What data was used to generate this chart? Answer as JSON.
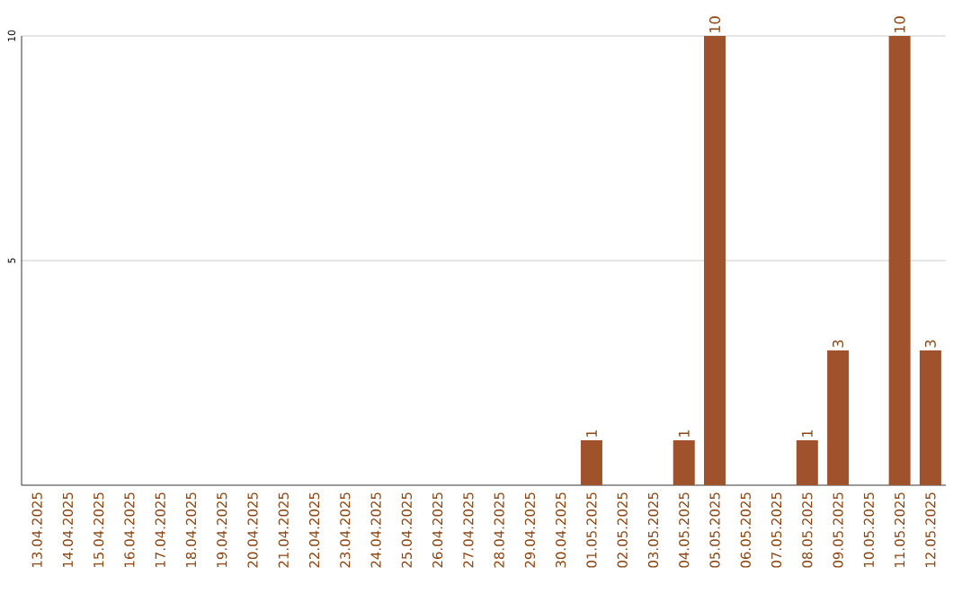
{
  "chart_data": {
    "type": "bar",
    "categories": [
      "13.04.2025",
      "14.04.2025",
      "15.04.2025",
      "16.04.2025",
      "17.04.2025",
      "18.04.2025",
      "19.04.2025",
      "20.04.2025",
      "21.04.2025",
      "22.04.2025",
      "23.04.2025",
      "24.04.2025",
      "25.04.2025",
      "26.04.2025",
      "27.04.2025",
      "28.04.2025",
      "29.04.2025",
      "30.04.2025",
      "01.05.2025",
      "02.05.2025",
      "03.05.2025",
      "04.05.2025",
      "05.05.2025",
      "06.05.2025",
      "07.05.2025",
      "08.05.2025",
      "09.05.2025",
      "10.05.2025",
      "11.05.2025",
      "12.05.2025"
    ],
    "values": [
      0,
      0,
      0,
      0,
      0,
      0,
      0,
      0,
      0,
      0,
      0,
      0,
      0,
      0,
      0,
      0,
      0,
      0,
      1,
      0,
      0,
      1,
      10,
      0,
      0,
      1,
      3,
      0,
      10,
      3
    ],
    "value_labels": [
      null,
      null,
      null,
      null,
      null,
      null,
      null,
      null,
      null,
      null,
      null,
      null,
      null,
      null,
      null,
      null,
      null,
      null,
      "1",
      null,
      null,
      "1",
      "10",
      null,
      null,
      "1",
      "3",
      null,
      "10",
      "3"
    ],
    "color": "#a0522d",
    "ylim": [
      0,
      10
    ],
    "yticks": [
      5,
      10
    ],
    "grid": "y"
  }
}
